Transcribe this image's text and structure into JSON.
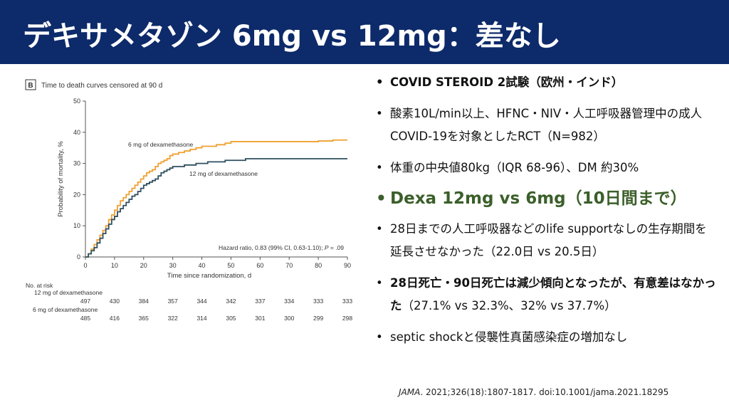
{
  "slide": {
    "title": "デキサメタゾン 6mg vs 12mg：差なし"
  },
  "panel": {
    "label": "B",
    "heading": "Time to death curves censored at 90 d",
    "hr_label_prefix": "Hazard ratio, 0.83 (99% CI, 0.63-1.10); ",
    "hr_label_p": "P",
    "hr_label_suffix": " = .09",
    "risk_header": "No. at risk"
  },
  "chart_data": {
    "type": "line",
    "step": true,
    "xlabel": "Time since randomization, d",
    "ylabel": "Probability of mortality, %",
    "xlim": [
      0,
      90
    ],
    "ylim": [
      0,
      50
    ],
    "xticks": [
      0,
      10,
      20,
      30,
      40,
      50,
      60,
      70,
      80,
      90
    ],
    "yticks": [
      0,
      10,
      20,
      30,
      40,
      50
    ],
    "colors": {
      "6mg": "#f0a030",
      "12mg": "#2f4f5f"
    },
    "series": [
      {
        "name": "6 mg of dexamethasone",
        "color": "#f0a030",
        "x": [
          0,
          1,
          2,
          3,
          4,
          5,
          6,
          7,
          8,
          9,
          10,
          11,
          12,
          13,
          14,
          15,
          16,
          17,
          18,
          19,
          20,
          21,
          22,
          23,
          24,
          25,
          26,
          27,
          28,
          29,
          30,
          32,
          34,
          36,
          38,
          40,
          42,
          45,
          48,
          50,
          55,
          60,
          65,
          70,
          75,
          80,
          85,
          90
        ],
        "y": [
          0,
          1,
          2.5,
          4,
          5.5,
          7,
          8.5,
          10,
          12,
          13.5,
          15,
          16.5,
          18,
          19,
          20,
          21,
          22,
          23,
          24,
          25,
          26,
          27,
          27.5,
          28,
          29,
          30,
          30.5,
          31,
          31.5,
          32.5,
          33,
          33.5,
          34,
          34.5,
          35,
          35.5,
          35.5,
          36,
          36.5,
          37,
          37,
          37,
          37,
          37,
          37,
          37.2,
          37.5,
          37.5
        ]
      },
      {
        "name": "12 mg of dexamethasone",
        "color": "#2f4f5f",
        "x": [
          0,
          1,
          2,
          3,
          4,
          5,
          6,
          7,
          8,
          9,
          10,
          11,
          12,
          13,
          14,
          15,
          16,
          17,
          18,
          19,
          20,
          21,
          22,
          23,
          24,
          25,
          26,
          27,
          28,
          29,
          30,
          32,
          34,
          36,
          38,
          40,
          42,
          45,
          48,
          50,
          55,
          60,
          65,
          70,
          75,
          80,
          85,
          90
        ],
        "y": [
          0,
          1,
          2,
          3,
          4.5,
          6,
          7.5,
          9,
          10.5,
          12,
          13,
          14.5,
          15.5,
          16.5,
          17.5,
          18.5,
          19.5,
          20,
          21,
          22,
          23,
          23.5,
          24,
          24.5,
          25,
          26,
          27,
          27.5,
          28,
          28.5,
          29,
          29,
          29.5,
          29.5,
          30,
          30,
          30.5,
          30.5,
          31,
          31,
          31.5,
          31.5,
          31.5,
          31.5,
          31.5,
          31.5,
          31.5,
          31.5
        ]
      }
    ],
    "annotations": [
      "6 mg of dexamethasone",
      "12 mg of dexamethasone"
    ],
    "risk_table": {
      "rows": [
        {
          "label": "12 mg of dexamethasone",
          "values": [
            "497",
            "430",
            "384",
            "357",
            "344",
            "342",
            "337",
            "334",
            "333",
            "333"
          ]
        },
        {
          "label": "6 mg of dexamethasone",
          "values": [
            "485",
            "416",
            "365",
            "322",
            "314",
            "305",
            "301",
            "300",
            "299",
            "298"
          ]
        }
      ]
    }
  },
  "bullets": [
    {
      "text": "COVID STEROID 2試験（欧州・インド）",
      "style": "bold"
    },
    {
      "text": "酸素10L/min以上、HFNC・NIV・人工呼吸器管理中の成人COVID-19を対象としたRCT（N=982）",
      "style": "normal"
    },
    {
      "text": "体重の中央値80kg（IQR 68-96）、DM 約30%",
      "style": "normal"
    },
    {
      "text": "Dexa 12mg vs 6mg（10日間まで）",
      "style": "green"
    },
    {
      "text": "28日までの人工呼吸器などのlife supportなしの生存期間を延長させなかった（22.0日 vs 20.5日）",
      "style": "normal"
    },
    {
      "text_bold": "28日死亡・90日死亡は減少傾向となったが、有意差はなかった",
      "text": "（27.1% vs 32.3%、32% vs 37.7%）",
      "style": "mixed"
    },
    {
      "text": "septic shockと侵襲性真菌感染症の増加なし",
      "style": "normal"
    }
  ],
  "citation": {
    "journal": "JAMA",
    "rest": ". 2021;326(18):1807-1817. doi:10.1001/jama.2021.18295"
  }
}
